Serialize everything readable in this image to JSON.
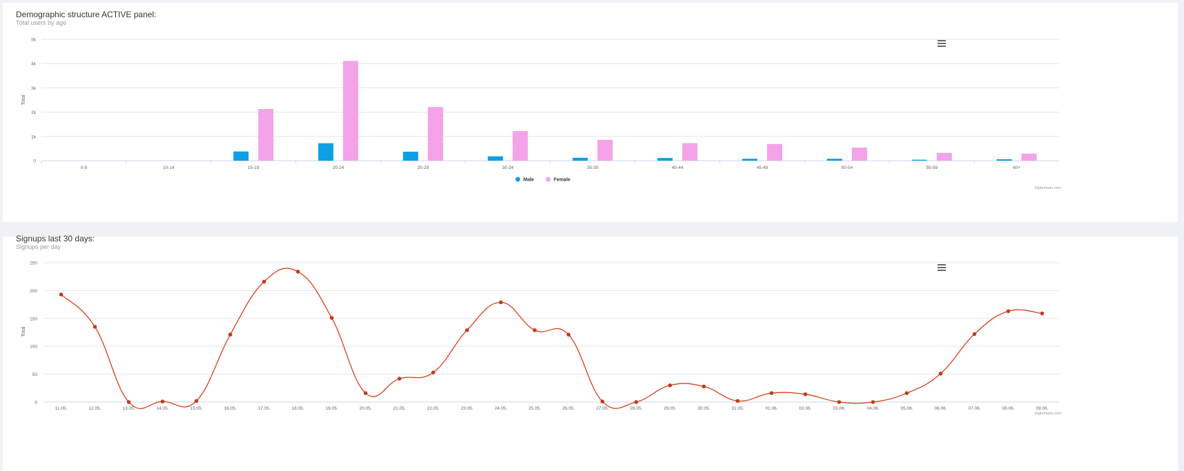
{
  "panels": {
    "demographics": {
      "title": "Demographic structure ACTIVE panel:",
      "subtitle": "Total users by age",
      "credits": "Highcharts.com",
      "menu_icon": "hamburger-menu-icon"
    },
    "signups": {
      "title": "Signups last 30 days:",
      "subtitle": "Signups per day",
      "credits": "Highcharts.com",
      "menu_icon": "hamburger-menu-icon"
    }
  },
  "colors": {
    "male": "#0fa0e3",
    "female": "#f4a3e8",
    "line": "#d6401c",
    "point": "#c23b1b"
  },
  "chart_data": [
    {
      "type": "bar",
      "title": "Demographic structure ACTIVE panel:",
      "subtitle": "Total users by age",
      "ylabel": "Total",
      "xlabel": "",
      "ylim": [
        0,
        5000
      ],
      "yticks": [
        "0",
        "1k",
        "2k",
        "3k",
        "4k",
        "5k"
      ],
      "categories": [
        "0-9",
        "10-14",
        "15-19",
        "20-24",
        "25-29",
        "30-34",
        "35-39",
        "40-44",
        "45-49",
        "50-54",
        "55-59",
        "60+"
      ],
      "series": [
        {
          "name": "Male",
          "values": [
            0,
            0,
            380,
            720,
            370,
            180,
            120,
            110,
            80,
            80,
            40,
            60
          ]
        },
        {
          "name": "Female",
          "values": [
            0,
            0,
            2130,
            4110,
            2210,
            1220,
            860,
            720,
            690,
            540,
            320,
            290
          ]
        }
      ],
      "legend": "bottom-center",
      "grid": true
    },
    {
      "type": "line",
      "title": "Signups last 30 days:",
      "subtitle": "Signups per day",
      "ylabel": "Total",
      "xlabel": "",
      "ylim": [
        0,
        250
      ],
      "yticks": [
        "0",
        "50",
        "100",
        "150",
        "200",
        "250"
      ],
      "x": [
        "11.05.",
        "12.05.",
        "13.05.",
        "14.05.",
        "15.05.",
        "16.05.",
        "17.05.",
        "18.05.",
        "19.05.",
        "20.05.",
        "21.05.",
        "22.05.",
        "23.05.",
        "24.05.",
        "25.05.",
        "26.05.",
        "27.05.",
        "28.05.",
        "29.05.",
        "30.05.",
        "31.05.",
        "01.06.",
        "02.06.",
        "03.06.",
        "04.06.",
        "05.06.",
        "06.06.",
        "07.06.",
        "08.06.",
        "09.06."
      ],
      "values": [
        193,
        135,
        0,
        1,
        2,
        121,
        216,
        234,
        151,
        16,
        42,
        53,
        129,
        179,
        129,
        121,
        1,
        0,
        30,
        28,
        2,
        16,
        14,
        0,
        0,
        16,
        51,
        122,
        163,
        159
      ],
      "legend": "none",
      "grid": true
    }
  ]
}
